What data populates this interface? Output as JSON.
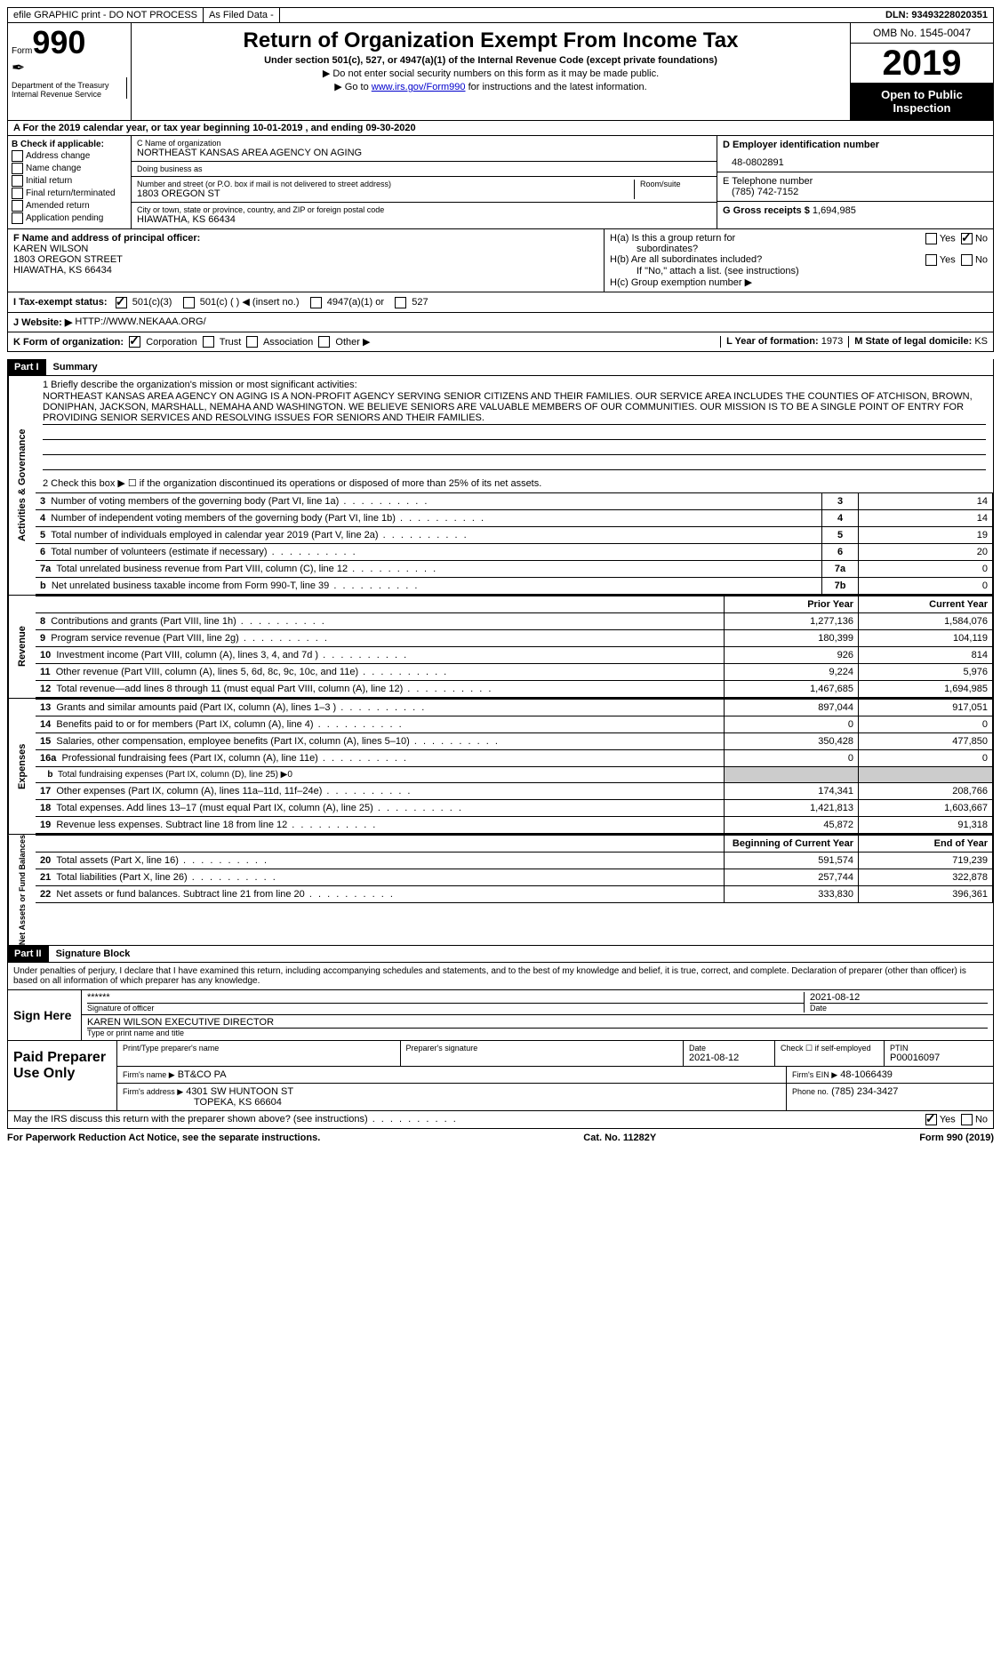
{
  "topbar": {
    "efile": "efile GRAPHIC print - DO NOT PROCESS",
    "asfiled": "As Filed Data -",
    "dln": "DLN: 93493228020351"
  },
  "header": {
    "form_prefix": "Form",
    "form_num": "990",
    "dept": "Department of the Treasury\nInternal Revenue Service",
    "title": "Return of Organization Exempt From Income Tax",
    "subtitle": "Under section 501(c), 527, or 4947(a)(1) of the Internal Revenue Code (except private foundations)",
    "note1": "▶ Do not enter social security numbers on this form as it may be made public.",
    "note2_prefix": "▶ Go to ",
    "note2_link": "www.irs.gov/Form990",
    "note2_suffix": " for instructions and the latest information.",
    "omb": "OMB No. 1545-0047",
    "year": "2019",
    "open": "Open to Public Inspection"
  },
  "row_a": "A  For the 2019 calendar year, or tax year beginning 10-01-2019  , and ending 09-30-2020",
  "b": {
    "label": "B Check if applicable:",
    "items": [
      "Address change",
      "Name change",
      "Initial return",
      "Final return/terminated",
      "Amended return",
      "Application pending"
    ]
  },
  "c": {
    "name_label": "C Name of organization",
    "name": "NORTHEAST KANSAS AREA AGENCY ON AGING",
    "dba_label": "Doing business as",
    "dba": "",
    "street_label": "Number and street (or P.O. box if mail is not delivered to street address)",
    "room_label": "Room/suite",
    "street": "1803 OREGON ST",
    "city_label": "City or town, state or province, country, and ZIP or foreign postal code",
    "city": "HIAWATHA, KS  66434"
  },
  "d": {
    "ein_label": "D Employer identification number",
    "ein": "48-0802891",
    "tel_label": "E Telephone number",
    "tel": "(785) 742-7152",
    "gross_label": "G Gross receipts $",
    "gross": "1,694,985"
  },
  "f": {
    "label": "F  Name and address of principal officer:",
    "name": "KAREN WILSON",
    "addr1": "1803 OREGON STREET",
    "addr2": "HIAWATHA, KS  66434"
  },
  "h": {
    "a1": "H(a)  Is this a group return for",
    "a2": "subordinates?",
    "b1": "H(b)  Are all subordinates included?",
    "b2": "If \"No,\" attach a list. (see instructions)",
    "c": "H(c)  Group exemption number ▶",
    "yes": "Yes",
    "no": "No"
  },
  "i": {
    "label": "I  Tax-exempt status:",
    "o1": "501(c)(3)",
    "o2": "501(c) (   ) ◀ (insert no.)",
    "o3": "4947(a)(1) or",
    "o4": "527"
  },
  "j": {
    "label": "J  Website: ▶",
    "value": "HTTP://WWW.NEKAAA.ORG/"
  },
  "k": {
    "label": "K Form of organization:",
    "o1": "Corporation",
    "o2": "Trust",
    "o3": "Association",
    "o4": "Other ▶",
    "l_label": "L Year of formation:",
    "l_val": "1973",
    "m_label": "M State of legal domicile:",
    "m_val": "KS"
  },
  "part1": {
    "header": "Part I",
    "title": "Summary",
    "q1": "1  Briefly describe the organization's mission or most significant activities:",
    "mission": "NORTHEAST KANSAS AREA AGENCY ON AGING IS A NON-PROFIT AGENCY SERVING SENIOR CITIZENS AND THEIR FAMILIES. OUR SERVICE AREA INCLUDES THE COUNTIES OF ATCHISON, BROWN, DONIPHAN, JACKSON, MARSHALL, NEMAHA AND WASHINGTON. WE BELIEVE SENIORS ARE VALUABLE MEMBERS OF OUR COMMUNITIES. OUR MISSION IS TO BE A SINGLE POINT OF ENTRY FOR PROVIDING SENIOR SERVICES AND RESOLVING ISSUES FOR SENIORS AND THEIR FAMILIES.",
    "q2": "2  Check this box ▶ ☐ if the organization discontinued its operations or disposed of more than 25% of its net assets.",
    "gov_label": "Activities & Governance",
    "rev_label": "Revenue",
    "exp_label": "Expenses",
    "net_label": "Net Assets or Fund Balances",
    "lines_gov": [
      {
        "n": "3",
        "t": "Number of voting members of the governing body (Part VI, line 1a)",
        "ln": "3",
        "v": "14"
      },
      {
        "n": "4",
        "t": "Number of independent voting members of the governing body (Part VI, line 1b)",
        "ln": "4",
        "v": "14"
      },
      {
        "n": "5",
        "t": "Total number of individuals employed in calendar year 2019 (Part V, line 2a)",
        "ln": "5",
        "v": "19"
      },
      {
        "n": "6",
        "t": "Total number of volunteers (estimate if necessary)",
        "ln": "6",
        "v": "20"
      },
      {
        "n": "7a",
        "t": "Total unrelated business revenue from Part VIII, column (C), line 12",
        "ln": "7a",
        "v": "0"
      },
      {
        "n": "b",
        "t": "Net unrelated business taxable income from Form 990-T, line 39",
        "ln": "7b",
        "v": "0"
      }
    ],
    "col_prior": "Prior Year",
    "col_current": "Current Year",
    "lines_rev": [
      {
        "n": "8",
        "t": "Contributions and grants (Part VIII, line 1h)",
        "p": "1,277,136",
        "c": "1,584,076"
      },
      {
        "n": "9",
        "t": "Program service revenue (Part VIII, line 2g)",
        "p": "180,399",
        "c": "104,119"
      },
      {
        "n": "10",
        "t": "Investment income (Part VIII, column (A), lines 3, 4, and 7d )",
        "p": "926",
        "c": "814"
      },
      {
        "n": "11",
        "t": "Other revenue (Part VIII, column (A), lines 5, 6d, 8c, 9c, 10c, and 11e)",
        "p": "9,224",
        "c": "5,976"
      },
      {
        "n": "12",
        "t": "Total revenue—add lines 8 through 11 (must equal Part VIII, column (A), line 12)",
        "p": "1,467,685",
        "c": "1,694,985"
      }
    ],
    "lines_exp": [
      {
        "n": "13",
        "t": "Grants and similar amounts paid (Part IX, column (A), lines 1–3 )",
        "p": "897,044",
        "c": "917,051"
      },
      {
        "n": "14",
        "t": "Benefits paid to or for members (Part IX, column (A), line 4)",
        "p": "0",
        "c": "0"
      },
      {
        "n": "15",
        "t": "Salaries, other compensation, employee benefits (Part IX, column (A), lines 5–10)",
        "p": "350,428",
        "c": "477,850"
      },
      {
        "n": "16a",
        "t": "Professional fundraising fees (Part IX, column (A), line 11e)",
        "p": "0",
        "c": "0"
      },
      {
        "n": "b",
        "t": "Total fundraising expenses (Part IX, column (D), line 25) ▶0",
        "p": "",
        "c": ""
      },
      {
        "n": "17",
        "t": "Other expenses (Part IX, column (A), lines 11a–11d, 11f–24e)",
        "p": "174,341",
        "c": "208,766"
      },
      {
        "n": "18",
        "t": "Total expenses. Add lines 13–17 (must equal Part IX, column (A), line 25)",
        "p": "1,421,813",
        "c": "1,603,667"
      },
      {
        "n": "19",
        "t": "Revenue less expenses. Subtract line 18 from line 12",
        "p": "45,872",
        "c": "91,318"
      }
    ],
    "col_begin": "Beginning of Current Year",
    "col_end": "End of Year",
    "lines_net": [
      {
        "n": "20",
        "t": "Total assets (Part X, line 16)",
        "p": "591,574",
        "c": "719,239"
      },
      {
        "n": "21",
        "t": "Total liabilities (Part X, line 26)",
        "p": "257,744",
        "c": "322,878"
      },
      {
        "n": "22",
        "t": "Net assets or fund balances. Subtract line 21 from line 20",
        "p": "333,830",
        "c": "396,361"
      }
    ]
  },
  "part2": {
    "header": "Part II",
    "title": "Signature Block",
    "penalty": "Under penalties of perjury, I declare that I have examined this return, including accompanying schedules and statements, and to the best of my knowledge and belief, it is true, correct, and complete. Declaration of preparer (other than officer) is based on all information of which preparer has any knowledge.",
    "sign_here": "Sign Here",
    "stars": "******",
    "sig_officer": "Signature of officer",
    "date_label": "Date",
    "sig_date": "2021-08-12",
    "officer_name": "KAREN WILSON  EXECUTIVE DIRECTOR",
    "type_name": "Type or print name and title",
    "paid": "Paid Preparer Use Only",
    "prep_name_label": "Print/Type preparer's name",
    "prep_sig_label": "Preparer's signature",
    "prep_date_label": "Date",
    "prep_date": "2021-08-12",
    "check_self": "Check ☐ if self-employed",
    "ptin_label": "PTIN",
    "ptin": "P00016097",
    "firm_name_label": "Firm's name    ▶",
    "firm_name": "BT&CO PA",
    "firm_ein_label": "Firm's EIN ▶",
    "firm_ein": "48-1066439",
    "firm_addr_label": "Firm's address ▶",
    "firm_addr1": "4301 SW HUNTOON ST",
    "firm_addr2": "TOPEKA, KS  66604",
    "phone_label": "Phone no.",
    "phone": "(785) 234-3427",
    "discuss": "May the IRS discuss this return with the preparer shown above? (see instructions)",
    "yes": "Yes",
    "no": "No"
  },
  "footer": {
    "paperwork": "For Paperwork Reduction Act Notice, see the separate instructions.",
    "cat": "Cat. No. 11282Y",
    "form": "Form 990 (2019)"
  }
}
